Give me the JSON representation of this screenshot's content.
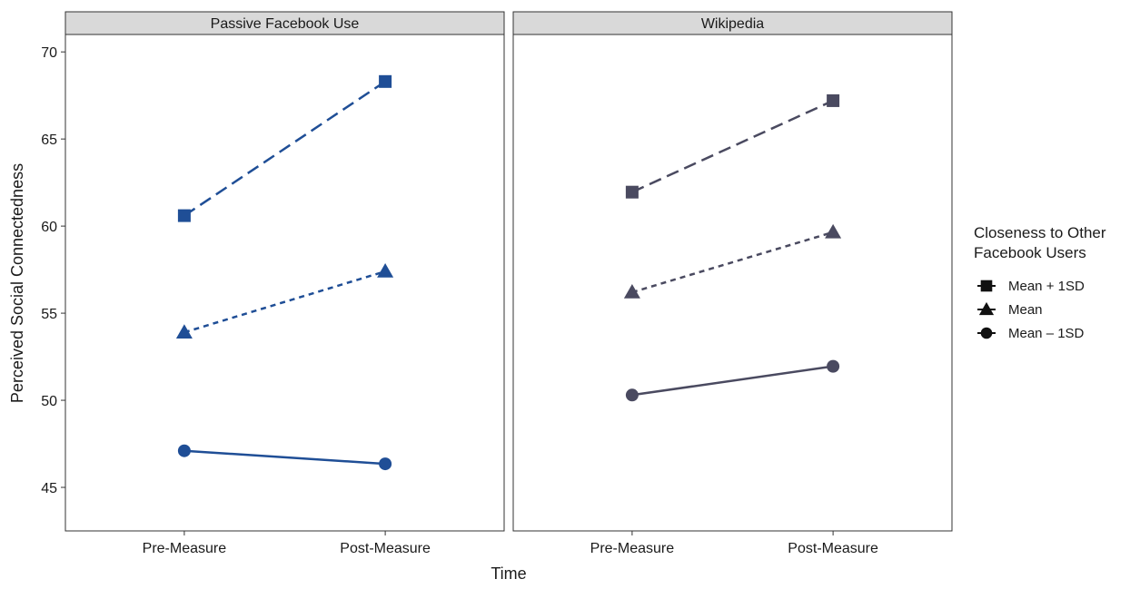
{
  "chart_data": {
    "type": "line",
    "facets": [
      "Passive Facebook Use",
      "Wikipedia"
    ],
    "x": [
      "Pre-Measure",
      "Post-Measure"
    ],
    "xlabel": "Time",
    "ylabel": "Perceived Social Connectedness",
    "ylim": [
      42.5,
      71
    ],
    "yticks": [
      45,
      50,
      55,
      60,
      65,
      70
    ],
    "grid": false,
    "legend": {
      "title_lines": [
        "Closeness to Other",
        "Facebook Users"
      ],
      "placement": "right",
      "items": [
        {
          "label": "Mean + 1SD",
          "shape": "square"
        },
        {
          "label": "Mean",
          "shape": "triangle"
        },
        {
          "label": "Mean – 1SD",
          "shape": "circle"
        }
      ]
    },
    "colors": {
      "Passive Facebook Use": "#1f4e96",
      "Wikipedia": "#4a4a60"
    },
    "series": [
      {
        "facet": "Passive Facebook Use",
        "level": "Mean + 1SD",
        "shape": "square",
        "dash": "long",
        "values": [
          60.6,
          68.3
        ]
      },
      {
        "facet": "Passive Facebook Use",
        "level": "Mean",
        "shape": "triangle",
        "dash": "short",
        "values": [
          53.9,
          57.4
        ]
      },
      {
        "facet": "Passive Facebook Use",
        "level": "Mean – 1SD",
        "shape": "circle",
        "dash": "solid",
        "values": [
          47.1,
          46.35
        ]
      },
      {
        "facet": "Wikipedia",
        "level": "Mean + 1SD",
        "shape": "square",
        "dash": "long",
        "values": [
          61.95,
          67.2
        ]
      },
      {
        "facet": "Wikipedia",
        "level": "Mean",
        "shape": "triangle",
        "dash": "short",
        "values": [
          56.2,
          59.65
        ]
      },
      {
        "facet": "Wikipedia",
        "level": "Mean – 1SD",
        "shape": "circle",
        "dash": "solid",
        "values": [
          50.3,
          51.95
        ]
      }
    ]
  }
}
